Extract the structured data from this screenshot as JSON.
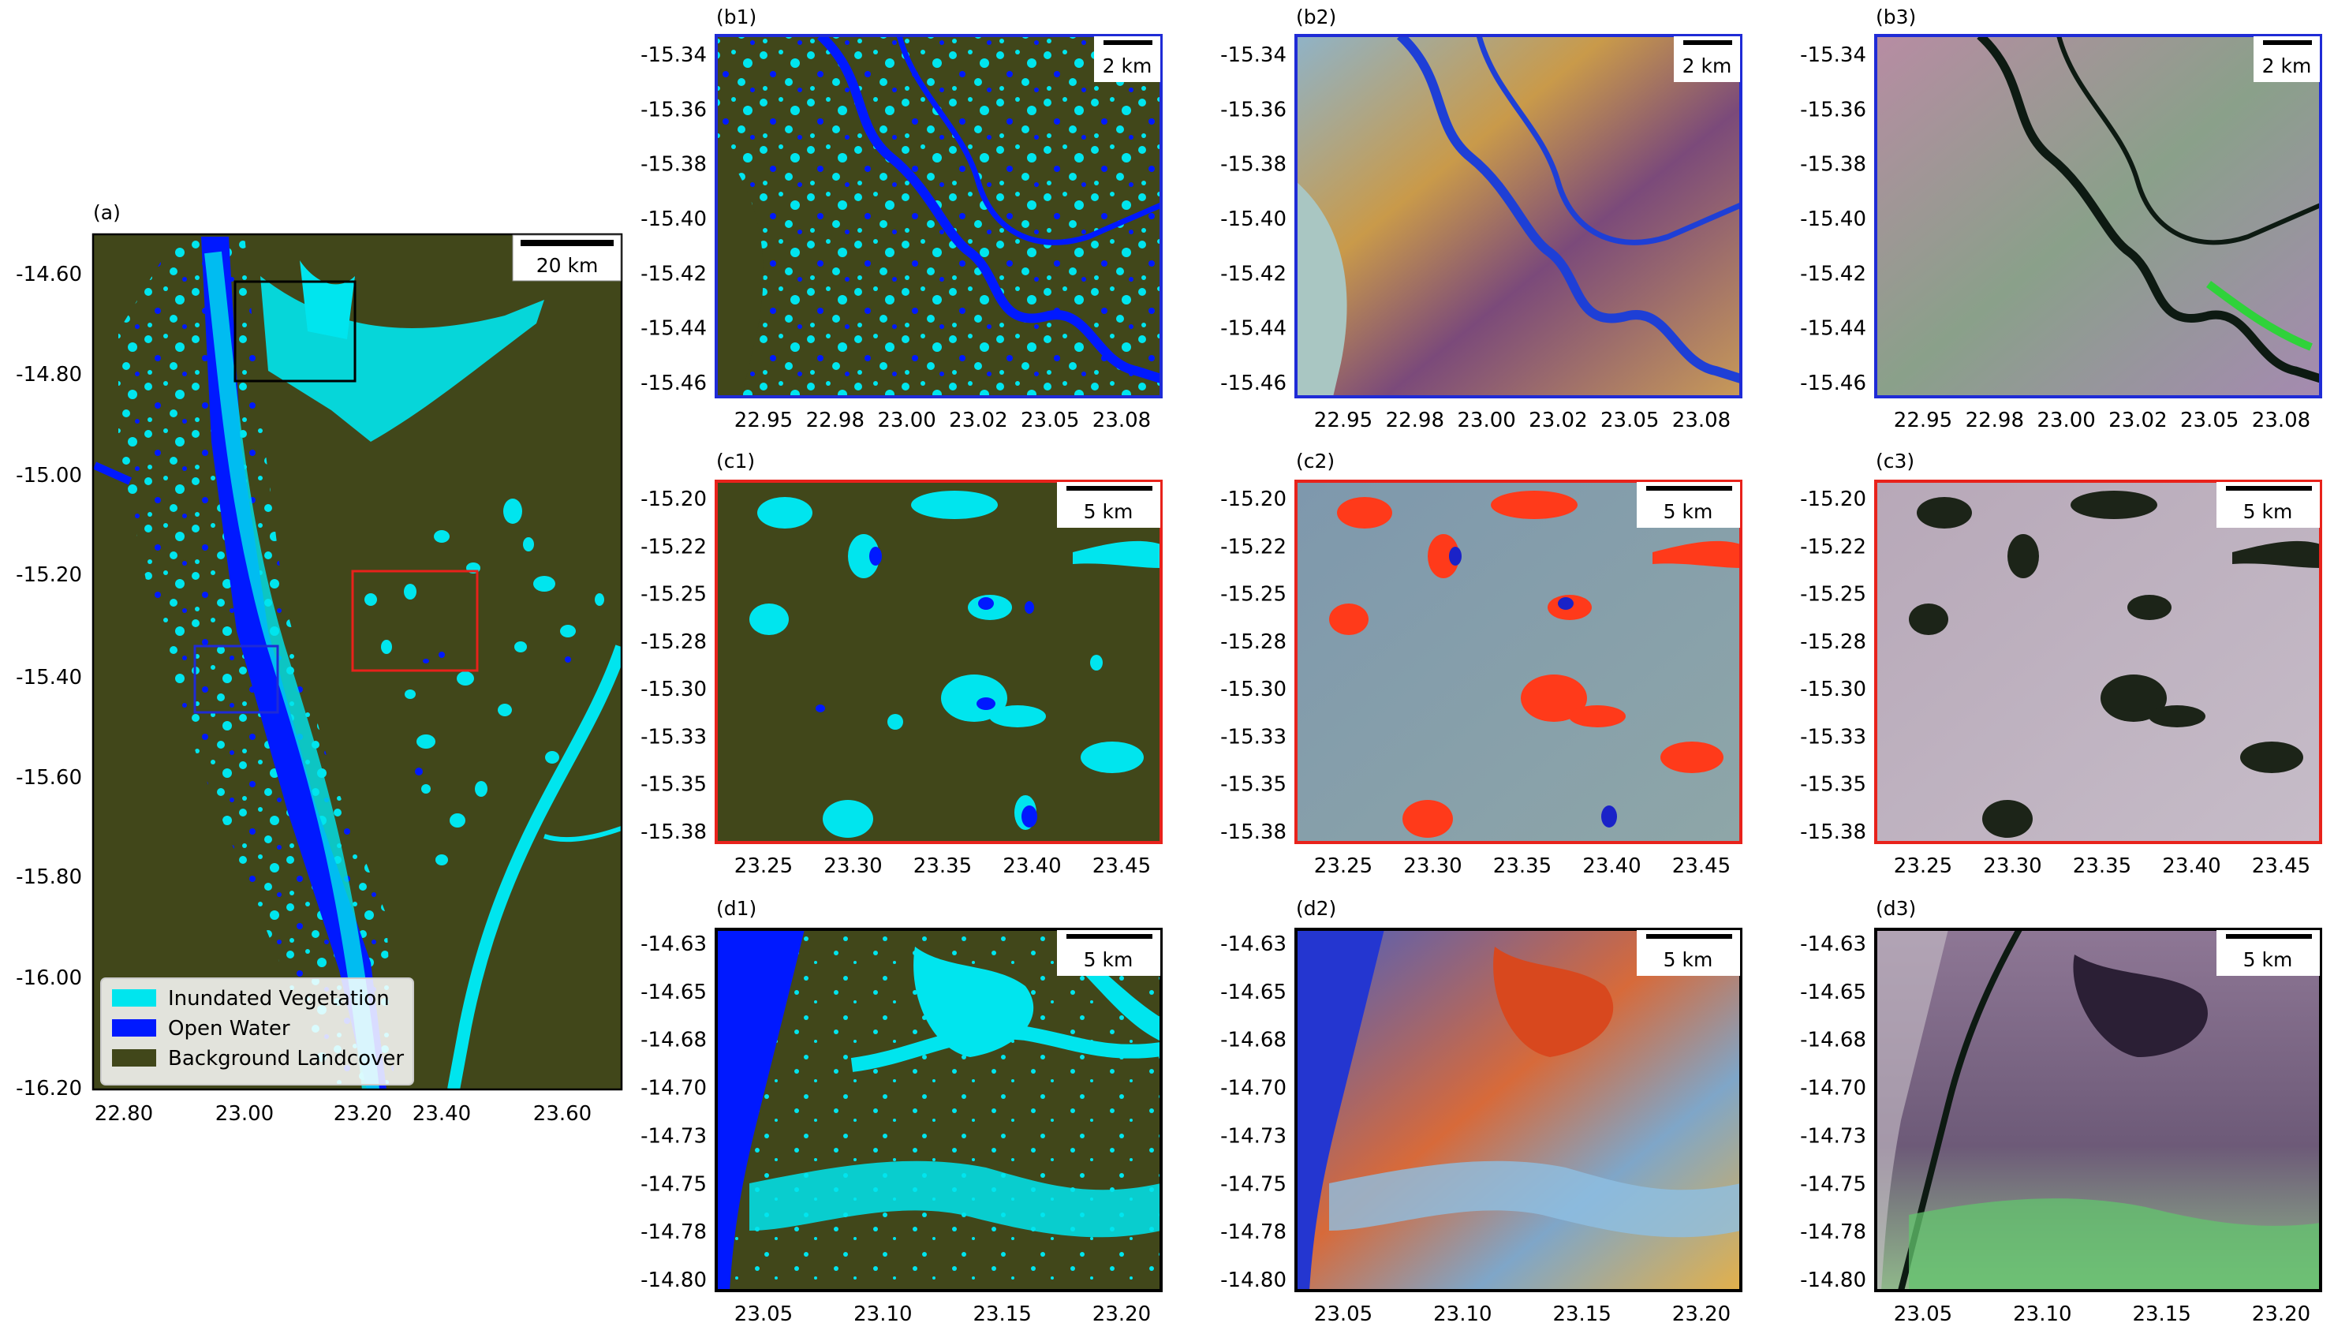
{
  "panels": [
    {
      "id": "a",
      "label": "(a)",
      "scalebar": "20 km",
      "yticks": [
        "-14.60",
        "-14.80",
        "-15.00",
        "-15.20",
        "-15.40",
        "-15.60",
        "-15.80",
        "-16.00",
        "-16.20"
      ],
      "xticks": [
        "22.80",
        "23.00",
        "23.20",
        "23.40",
        "23.60"
      ]
    },
    {
      "id": "b1",
      "label": "(b1)",
      "scalebar": "2 km"
    },
    {
      "id": "b2",
      "label": "(b2)",
      "scalebar": "2 km"
    },
    {
      "id": "b3",
      "label": "(b3)",
      "scalebar": "2 km"
    },
    {
      "id": "c1",
      "label": "(c1)",
      "scalebar": "5 km"
    },
    {
      "id": "c2",
      "label": "(c2)",
      "scalebar": "5 km"
    },
    {
      "id": "c3",
      "label": "(c3)",
      "scalebar": "5 km"
    },
    {
      "id": "d1",
      "label": "(d1)",
      "scalebar": "5 km"
    },
    {
      "id": "d2",
      "label": "(d2)",
      "scalebar": "5 km"
    },
    {
      "id": "d3",
      "label": "(d3)",
      "scalebar": "5 km"
    }
  ],
  "rows": {
    "b": {
      "yticks": [
        "-15.34",
        "-15.36",
        "-15.38",
        "-15.40",
        "-15.42",
        "-15.44",
        "-15.46"
      ],
      "xticks": [
        "22.95",
        "22.98",
        "23.00",
        "23.02",
        "23.05",
        "23.08"
      ]
    },
    "c": {
      "yticks": [
        "-15.20",
        "-15.22",
        "-15.25",
        "-15.28",
        "-15.30",
        "-15.33",
        "-15.35",
        "-15.38"
      ],
      "xticks": [
        "23.25",
        "23.30",
        "23.35",
        "23.40",
        "23.45"
      ]
    },
    "d": {
      "yticks": [
        "-14.63",
        "-14.65",
        "-14.68",
        "-14.70",
        "-14.73",
        "-14.75",
        "-14.78",
        "-14.80"
      ],
      "xticks": [
        "23.05",
        "23.10",
        "23.15",
        "23.20"
      ]
    }
  },
  "legend": {
    "items": [
      {
        "label": "Inundated Vegetation",
        "color": "#00e5ee"
      },
      {
        "label": "Open Water",
        "color": "#0019ff"
      },
      {
        "label": "Background Landcover",
        "color": "#41471a"
      }
    ]
  },
  "colors": {
    "background_landcover": "#41471a",
    "inundated_vegetation": "#00e5ee",
    "open_water": "#0019ff",
    "frame_b": "#1f2bd6",
    "frame_c": "#e8221b",
    "frame_d": "#000000"
  }
}
